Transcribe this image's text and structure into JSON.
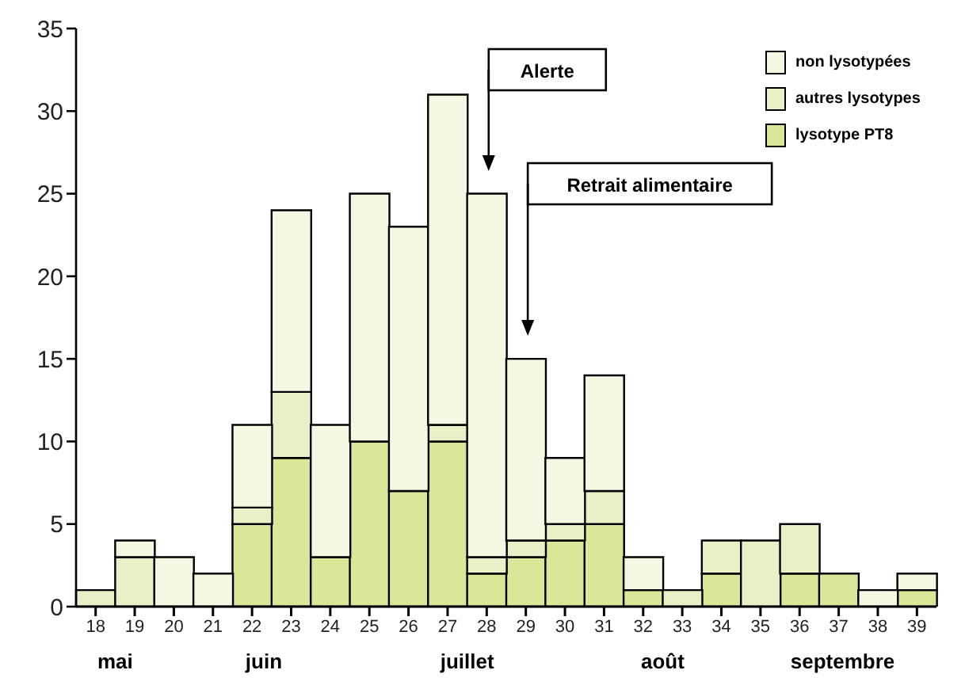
{
  "chart_data": {
    "type": "bar",
    "stacked": true,
    "categories": [
      "18",
      "19",
      "20",
      "21",
      "22",
      "23",
      "24",
      "25",
      "26",
      "27",
      "28",
      "29",
      "30",
      "31",
      "32",
      "33",
      "34",
      "35",
      "36",
      "37",
      "38",
      "39"
    ],
    "series": [
      {
        "name": "lysotype PT8",
        "color": "#dbe698",
        "values": [
          0,
          0,
          0,
          0,
          5,
          9,
          3,
          10,
          7,
          10,
          2,
          3,
          4,
          5,
          1,
          0,
          2,
          0,
          2,
          2,
          0,
          1
        ]
      },
      {
        "name": "autres lysotypes",
        "color": "#e9efc6",
        "values": [
          1,
          3,
          0,
          0,
          1,
          4,
          0,
          0,
          0,
          1,
          1,
          1,
          1,
          2,
          0,
          1,
          2,
          4,
          3,
          0,
          0,
          0
        ]
      },
      {
        "name": "non lysotypées",
        "color": "#f4f7e1",
        "values": [
          0,
          1,
          3,
          2,
          5,
          11,
          8,
          15,
          16,
          20,
          22,
          11,
          4,
          7,
          2,
          0,
          0,
          0,
          0,
          0,
          1,
          1
        ]
      }
    ],
    "ylim": [
      0,
      35
    ],
    "yticks": [
      0,
      5,
      10,
      15,
      20,
      25,
      30,
      35
    ],
    "grid": false,
    "legend": "top right",
    "annotations": [
      "Alerte",
      "Retrait alimentaire",
      "mai",
      "juin",
      "juillet",
      "août",
      "septembre"
    ]
  }
}
